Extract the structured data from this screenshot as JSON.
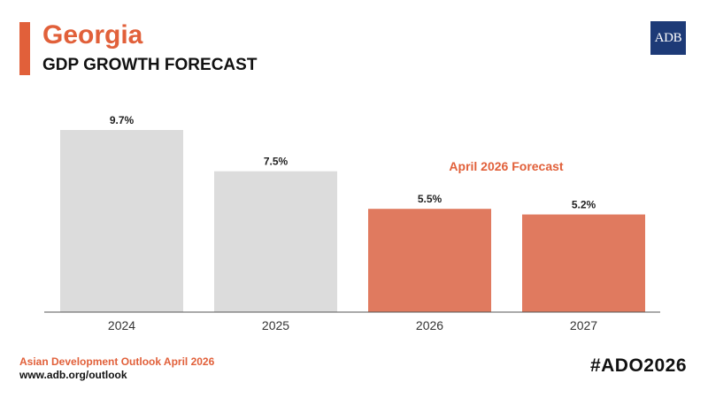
{
  "header": {
    "country": "Georgia",
    "subtitle": "GDP GROWTH FORECAST",
    "logo_text": "ADB"
  },
  "footer": {
    "source": "Asian Development Outlook April 2026",
    "url": "www.adb.org/outlook",
    "hashtag": "#ADO2026"
  },
  "colors": {
    "accent": "#E1603A",
    "actual_bar": "#DCDCDC",
    "forecast_bar": "#E07A5F",
    "logo_bg": "#1D3A77",
    "axis": "#555555"
  },
  "chart_data": {
    "type": "bar",
    "title": "GDP GROWTH FORECAST",
    "xlabel": "",
    "ylabel": "",
    "categories": [
      "2024",
      "2025",
      "2026",
      "2027"
    ],
    "values": [
      9.7,
      7.5,
      5.5,
      5.2
    ],
    "value_labels": [
      "9.7%",
      "7.5%",
      "5.5%",
      "5.2%"
    ],
    "is_forecast": [
      false,
      false,
      true,
      true
    ],
    "forecast_annotation": "April 2026 Forecast",
    "ylim": [
      0,
      9.7
    ],
    "grid": false
  }
}
